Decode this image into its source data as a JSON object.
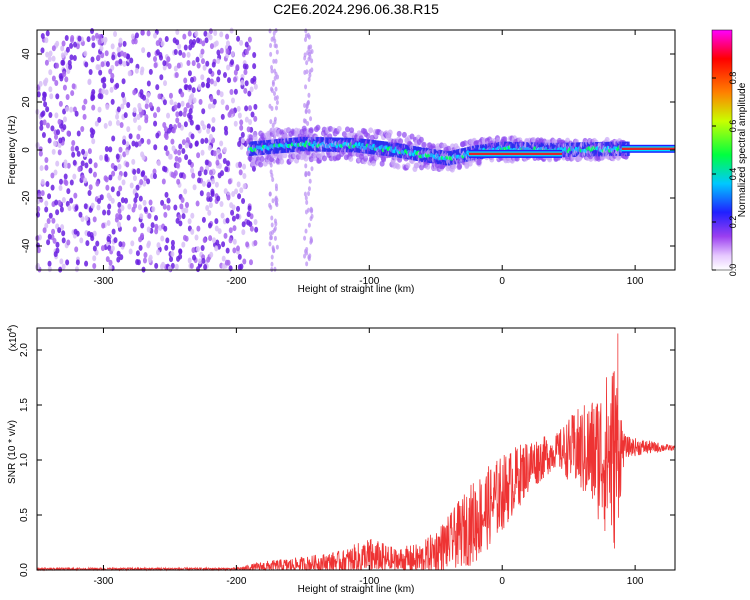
{
  "title": "C2E6.2024.296.06.38.R15",
  "colors": {
    "snr_line": "#ee3333",
    "spectrogram_noise": "#7a2ee0",
    "spectrogram_trace_core": "#e0232b",
    "background": "#ffffff"
  },
  "chart_data": [
    {
      "type": "heatmap",
      "description_role": "spectrogram",
      "xlabel": "Height of straight line (km)",
      "ylabel": "Frequency (Hz)",
      "xlim": [
        -350,
        130
      ],
      "ylim": [
        -50,
        50
      ],
      "x_ticks": [
        -300,
        -200,
        -100,
        0,
        100
      ],
      "x_tick_labels": [
        "-300",
        "-200",
        "-100",
        "0",
        "100"
      ],
      "y_ticks": [
        -40,
        -20,
        0,
        20,
        40
      ],
      "y_tick_labels": [
        "-40",
        "-20",
        "0",
        "20",
        "40"
      ],
      "colorbar": {
        "label": "Normalized spectral amplitude",
        "range": [
          0.0,
          1.0
        ],
        "ticks": [
          0.0,
          0.2,
          0.4,
          0.6,
          0.8
        ],
        "tick_labels": [
          "0.0",
          "0.2",
          "0.4",
          "0.6",
          "0.8"
        ],
        "colormap_stops": [
          "#ffffff",
          "#9b3ff0",
          "#2020ff",
          "#00ffff",
          "#00ff40",
          "#ffff00",
          "#ff8000",
          "#ff0000",
          "#ff00ff"
        ]
      },
      "signal_trace": [
        {
          "x": -190,
          "y": 0.5
        },
        {
          "x": -150,
          "y": 2.5
        },
        {
          "x": -110,
          "y": 2.0
        },
        {
          "x": -80,
          "y": 0.0
        },
        {
          "x": -60,
          "y": -2.0
        },
        {
          "x": -40,
          "y": -3.5
        },
        {
          "x": -20,
          "y": -1.0
        },
        {
          "x": 0,
          "y": 0.5
        },
        {
          "x": 40,
          "y": 0.0
        },
        {
          "x": 70,
          "y": 0.3
        },
        {
          "x": 90,
          "y": 0.5
        },
        {
          "x": 130,
          "y": 0.5
        }
      ],
      "noise_region_x": [
        -350,
        -185
      ],
      "grid": false
    },
    {
      "type": "line",
      "xlabel": "Height of straight line (km)",
      "ylabel": "SNR (10 * v/v)",
      "y_multiplier_label": "(x10",
      "y_multiplier_exponent": "4",
      "xlim": [
        -350,
        130
      ],
      "ylim": [
        0,
        2.2
      ],
      "x_ticks": [
        -300,
        -200,
        -100,
        0,
        100
      ],
      "x_tick_labels": [
        "-300",
        "-200",
        "-100",
        "0",
        "100"
      ],
      "y_ticks": [
        0.0,
        0.5,
        1.0,
        1.5,
        2.0
      ],
      "y_tick_labels": [
        "0.0",
        "0.5",
        "1.0",
        "1.5",
        "2.0"
      ],
      "series": [
        {
          "envelope": [
            {
              "x": -350,
              "y": 0.01,
              "amp": 0.01
            },
            {
              "x": -200,
              "y": 0.01,
              "amp": 0.01
            },
            {
              "x": -180,
              "y": 0.03,
              "amp": 0.05
            },
            {
              "x": -150,
              "y": 0.05,
              "amp": 0.07
            },
            {
              "x": -120,
              "y": 0.08,
              "amp": 0.1
            },
            {
              "x": -100,
              "y": 0.1,
              "amp": 0.2
            },
            {
              "x": -80,
              "y": 0.08,
              "amp": 0.12
            },
            {
              "x": -60,
              "y": 0.1,
              "amp": 0.15
            },
            {
              "x": -40,
              "y": 0.25,
              "amp": 0.25
            },
            {
              "x": -20,
              "y": 0.45,
              "amp": 0.4
            },
            {
              "x": 0,
              "y": 0.7,
              "amp": 0.35
            },
            {
              "x": 20,
              "y": 0.95,
              "amp": 0.25
            },
            {
              "x": 40,
              "y": 1.08,
              "amp": 0.15
            },
            {
              "x": 55,
              "y": 1.1,
              "amp": 0.35
            },
            {
              "x": 70,
              "y": 1.05,
              "amp": 0.55
            },
            {
              "x": 85,
              "y": 1.05,
              "amp": 0.9
            },
            {
              "x": 92,
              "y": 1.12,
              "amp": 0.1
            },
            {
              "x": 130,
              "y": 1.11,
              "amp": 0.02
            }
          ],
          "peak": {
            "x": 87,
            "y": 2.15
          }
        }
      ],
      "grid": false
    }
  ]
}
